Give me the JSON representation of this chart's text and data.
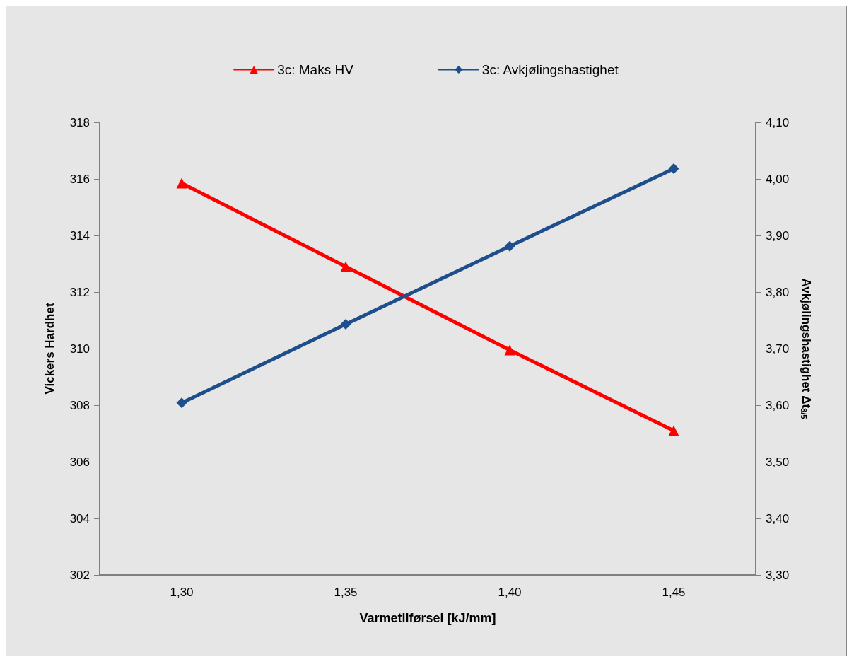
{
  "chart_data": {
    "type": "line",
    "xlabel": "Varmetilførsel [kJ/mm]",
    "ylabel": "Vickers Hardhet",
    "y2label": "Avkjølingshastighet Δt$_{8/5}$",
    "categories": [
      "1,30",
      "1,35",
      "1,40",
      "1,45"
    ],
    "series": [
      {
        "name": "3c: Maks HV",
        "color": "#ff0000",
        "marker": "triangle",
        "values": [
          315.85,
          312.9,
          309.95,
          307.1
        ]
      },
      {
        "name": "3c: Avkjølingshastighet",
        "color": "#1f4e8c",
        "marker": "diamond",
        "axis": "y2",
        "values": [
          3.604,
          3.743,
          3.881,
          4.018
        ]
      }
    ],
    "ylim": [
      302,
      318
    ],
    "yticks": [
      302,
      304,
      306,
      308,
      310,
      312,
      314,
      316,
      318
    ],
    "y2lim": [
      3.3,
      4.1
    ],
    "y2ticks": [
      {
        "value": 3.3,
        "label": "3,30"
      },
      {
        "value": 3.4,
        "label": "3,40"
      },
      {
        "value": 3.5,
        "label": "3,50"
      },
      {
        "value": 3.6,
        "label": "3,60"
      },
      {
        "value": 3.7,
        "label": "3,70"
      },
      {
        "value": 3.8,
        "label": "3,80"
      },
      {
        "value": 3.9,
        "label": "3,90"
      },
      {
        "value": 4.0,
        "label": "4,00"
      },
      {
        "value": 4.1,
        "label": "4,10"
      }
    ],
    "grid": false,
    "legend": "top"
  }
}
